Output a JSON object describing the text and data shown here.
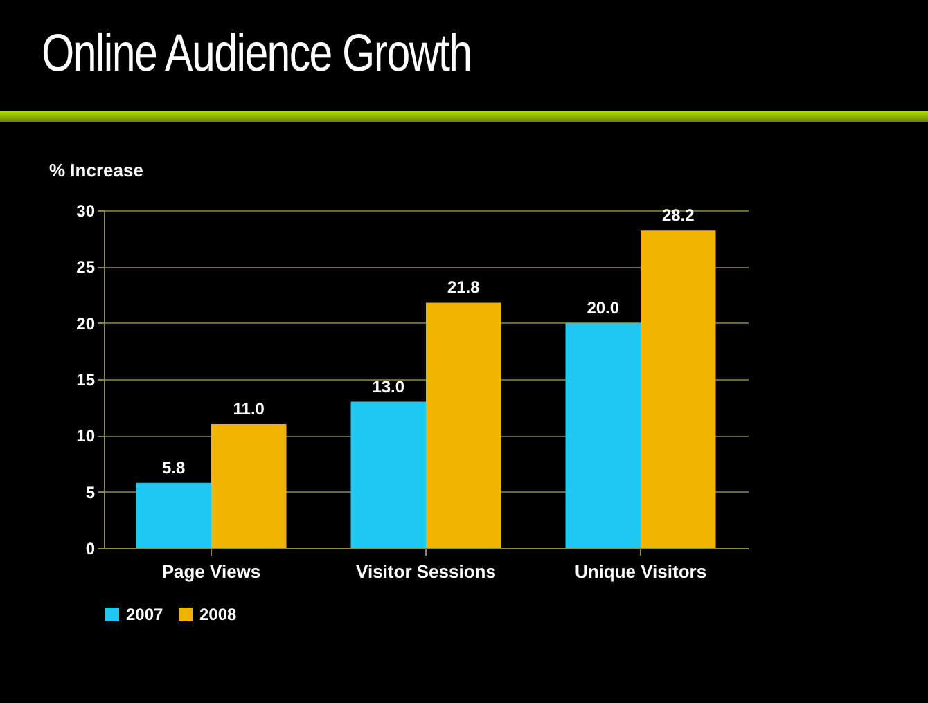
{
  "chart_data": {
    "type": "bar",
    "title": "Online Audience Growth",
    "ylabel": "% Increase",
    "categories": [
      "Page Views",
      "Visitor Sessions",
      "Unique Visitors"
    ],
    "series": [
      {
        "name": "2007",
        "color": "#1ec8f0",
        "values": [
          5.8,
          13.0,
          20.0
        ]
      },
      {
        "name": "2008",
        "color": "#f0b400",
        "values": [
          11.0,
          21.8,
          28.2
        ]
      }
    ],
    "value_labels": [
      [
        "5.8",
        "13.0",
        "20.0"
      ],
      [
        "11.0",
        "21.8",
        "28.2"
      ]
    ],
    "ylim": [
      0,
      30
    ],
    "yticks": [
      0,
      5,
      10,
      15,
      20,
      25,
      30
    ],
    "grid": "y",
    "legend": "bottom"
  }
}
